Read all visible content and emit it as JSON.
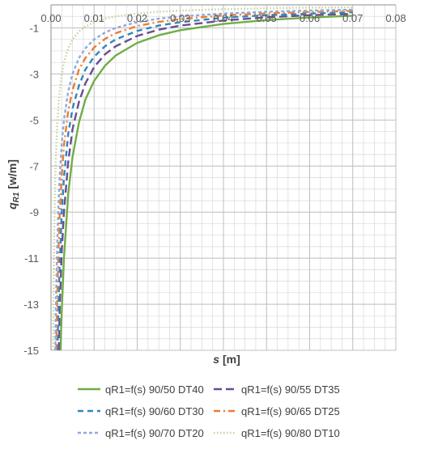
{
  "chart_data": {
    "type": "line",
    "xlabel_var": "s",
    "xlabel_unit": "[m]",
    "ylabel_var": "q",
    "ylabel_sub": "R1",
    "ylabel_unit": "[w/m]",
    "xlim": [
      0,
      0.08
    ],
    "ylim": [
      -15,
      0
    ],
    "x_ticks": [
      0.0,
      0.01,
      0.02,
      0.03,
      0.04,
      0.05,
      0.06,
      0.07,
      0.08
    ],
    "x_tick_labels": [
      "0.00",
      "0.01",
      "0.02",
      "0.03",
      "0.04",
      "0.05",
      "0.06",
      "0.07",
      "0.08"
    ],
    "y_ticks": [
      -1,
      -3,
      -5,
      -7,
      -9,
      -11,
      -13,
      -15
    ],
    "y_tick_labels": [
      "-1",
      "-3",
      "-5",
      "-7",
      "-9",
      "-11",
      "-13",
      "-15"
    ],
    "grid": true,
    "legend_position": "bottom",
    "series": [
      {
        "name": "qR1=f(s) 90/50 DT40",
        "color": "#70ad47",
        "dash": "solid",
        "points": [
          [
            0.0022,
            -15
          ],
          [
            0.0025,
            -13.3
          ],
          [
            0.003,
            -11
          ],
          [
            0.004,
            -8.2
          ],
          [
            0.005,
            -6.6
          ],
          [
            0.0065,
            -5.1
          ],
          [
            0.008,
            -4.1
          ],
          [
            0.01,
            -3.3
          ],
          [
            0.0125,
            -2.65
          ],
          [
            0.015,
            -2.2
          ],
          [
            0.02,
            -1.65
          ],
          [
            0.025,
            -1.32
          ],
          [
            0.03,
            -1.1
          ],
          [
            0.04,
            -0.83
          ],
          [
            0.05,
            -0.66
          ],
          [
            0.06,
            -0.55
          ],
          [
            0.07,
            -0.47
          ]
        ]
      },
      {
        "name": "qR1=f(s) 90/55 DT35",
        "color": "#6a4c93",
        "dash": "long-dash",
        "points": [
          [
            0.0018,
            -15
          ],
          [
            0.002,
            -13.2
          ],
          [
            0.0025,
            -10.7
          ],
          [
            0.003,
            -9
          ],
          [
            0.004,
            -6.8
          ],
          [
            0.005,
            -5.4
          ],
          [
            0.0065,
            -4.2
          ],
          [
            0.008,
            -3.4
          ],
          [
            0.01,
            -2.7
          ],
          [
            0.0125,
            -2.15
          ],
          [
            0.015,
            -1.8
          ],
          [
            0.02,
            -1.35
          ],
          [
            0.025,
            -1.08
          ],
          [
            0.03,
            -0.9
          ],
          [
            0.04,
            -0.68
          ],
          [
            0.05,
            -0.54
          ],
          [
            0.06,
            -0.45
          ],
          [
            0.07,
            -0.39
          ]
        ]
      },
      {
        "name": "qR1=f(s) 90/60 DT30",
        "color": "#2e86c1",
        "dash": "dash",
        "points": [
          [
            0.0015,
            -15
          ],
          [
            0.0017,
            -13.2
          ],
          [
            0.002,
            -11.3
          ],
          [
            0.0025,
            -9
          ],
          [
            0.003,
            -7.5
          ],
          [
            0.004,
            -5.6
          ],
          [
            0.005,
            -4.5
          ],
          [
            0.0065,
            -3.5
          ],
          [
            0.008,
            -2.8
          ],
          [
            0.01,
            -2.25
          ],
          [
            0.0125,
            -1.8
          ],
          [
            0.015,
            -1.5
          ],
          [
            0.02,
            -1.13
          ],
          [
            0.025,
            -0.9
          ],
          [
            0.03,
            -0.75
          ],
          [
            0.04,
            -0.56
          ],
          [
            0.05,
            -0.45
          ],
          [
            0.06,
            -0.38
          ],
          [
            0.07,
            -0.32
          ]
        ]
      },
      {
        "name": "qR1=f(s) 90/65 DT25",
        "color": "#ed7d31",
        "dash": "dash-dot",
        "points": [
          [
            0.0012,
            -15
          ],
          [
            0.0014,
            -13
          ],
          [
            0.0017,
            -10.8
          ],
          [
            0.002,
            -9.2
          ],
          [
            0.0025,
            -7.4
          ],
          [
            0.003,
            -6.1
          ],
          [
            0.004,
            -4.6
          ],
          [
            0.005,
            -3.7
          ],
          [
            0.0065,
            -2.8
          ],
          [
            0.008,
            -2.3
          ],
          [
            0.01,
            -1.85
          ],
          [
            0.0125,
            -1.48
          ],
          [
            0.015,
            -1.23
          ],
          [
            0.02,
            -0.92
          ],
          [
            0.025,
            -0.74
          ],
          [
            0.03,
            -0.62
          ],
          [
            0.04,
            -0.46
          ],
          [
            0.05,
            -0.37
          ],
          [
            0.06,
            -0.31
          ],
          [
            0.07,
            -0.26
          ]
        ]
      },
      {
        "name": "qR1=f(s) 90/70 DT20",
        "color": "#8eaadb",
        "dash": "short-dash",
        "points": [
          [
            0.001,
            -15
          ],
          [
            0.0012,
            -12.5
          ],
          [
            0.0014,
            -10.7
          ],
          [
            0.0017,
            -8.8
          ],
          [
            0.002,
            -7.5
          ],
          [
            0.0025,
            -6
          ],
          [
            0.003,
            -5
          ],
          [
            0.004,
            -3.75
          ],
          [
            0.005,
            -3
          ],
          [
            0.0065,
            -2.3
          ],
          [
            0.008,
            -1.88
          ],
          [
            0.01,
            -1.5
          ],
          [
            0.0125,
            -1.2
          ],
          [
            0.015,
            -1
          ],
          [
            0.02,
            -0.75
          ],
          [
            0.025,
            -0.6
          ],
          [
            0.03,
            -0.5
          ],
          [
            0.04,
            -0.38
          ],
          [
            0.05,
            -0.3
          ],
          [
            0.06,
            -0.25
          ],
          [
            0.07,
            -0.21
          ]
        ]
      },
      {
        "name": "qR1=f(s) 90/80 DT10",
        "color": "#c5d19a",
        "dash": "dot",
        "points": [
          [
            0.0005,
            -15
          ],
          [
            0.0006,
            -12.5
          ],
          [
            0.0007,
            -10.7
          ],
          [
            0.0008,
            -9.4
          ],
          [
            0.001,
            -7.5
          ],
          [
            0.0012,
            -6.25
          ],
          [
            0.0015,
            -5
          ],
          [
            0.002,
            -3.75
          ],
          [
            0.0025,
            -3
          ],
          [
            0.003,
            -2.5
          ],
          [
            0.004,
            -1.88
          ],
          [
            0.005,
            -1.5
          ],
          [
            0.0065,
            -1.15
          ],
          [
            0.008,
            -0.94
          ],
          [
            0.01,
            -0.75
          ],
          [
            0.0125,
            -0.6
          ],
          [
            0.015,
            -0.5
          ],
          [
            0.02,
            -0.38
          ],
          [
            0.025,
            -0.3
          ],
          [
            0.03,
            -0.25
          ],
          [
            0.04,
            -0.19
          ],
          [
            0.05,
            -0.15
          ],
          [
            0.06,
            -0.12
          ],
          [
            0.07,
            -0.11
          ]
        ]
      }
    ]
  }
}
